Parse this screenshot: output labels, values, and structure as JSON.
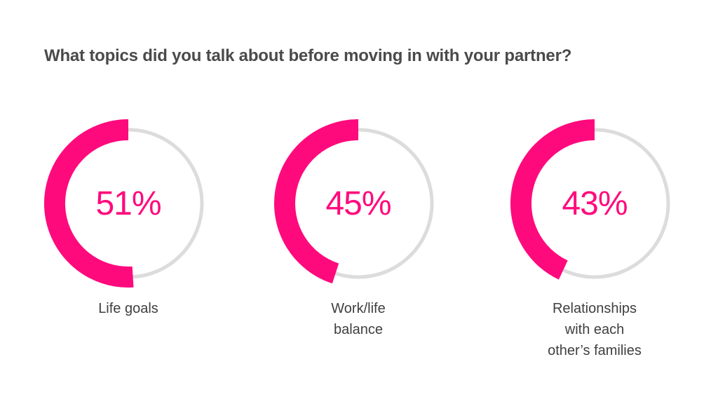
{
  "chart_data": {
    "type": "donut",
    "title": "What topics did you talk about before moving in with your partner?",
    "unit": "%",
    "colors": {
      "value": "#ff0a7d",
      "track": "#dcdcdc",
      "title": "#4a4a4a",
      "label": "#3f3f3f"
    },
    "items": [
      {
        "category": "Life goals",
        "value": 51,
        "value_label": "51%",
        "label_lines": [
          "Life goals"
        ]
      },
      {
        "category": "Work/life balance",
        "value": 45,
        "value_label": "45%",
        "label_lines": [
          "Work/life",
          "balance"
        ]
      },
      {
        "category": "Relationships with each other’s families",
        "value": 43,
        "value_label": "43%",
        "label_lines": [
          "Relationships",
          "with each",
          "other’s families"
        ]
      }
    ]
  }
}
